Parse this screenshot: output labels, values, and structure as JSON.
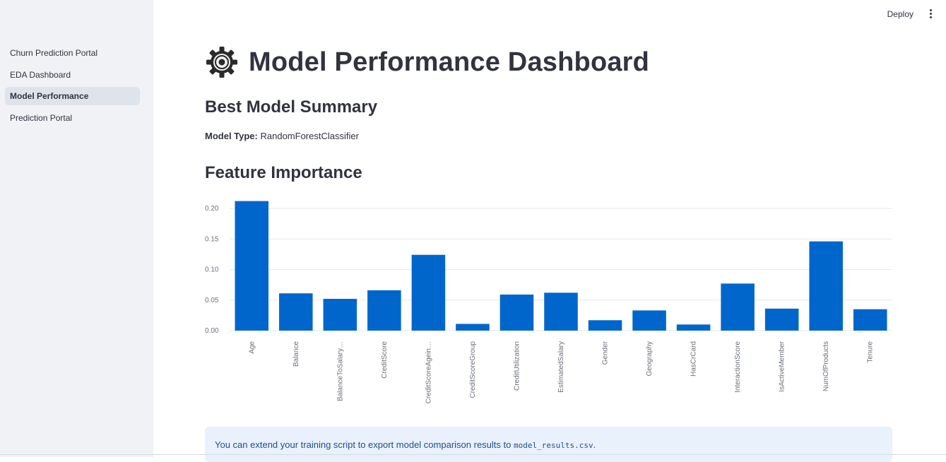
{
  "sidebar": {
    "items": [
      {
        "label": "Churn Prediction Portal",
        "active": false
      },
      {
        "label": "EDA Dashboard",
        "active": false
      },
      {
        "label": "Model Performance",
        "active": true
      },
      {
        "label": "Prediction Portal",
        "active": false
      }
    ]
  },
  "header": {
    "deploy_label": "Deploy",
    "menu_icon": "vertical-dots-icon"
  },
  "main": {
    "title_icon": "gear-icon",
    "title": "Model Performance Dashboard",
    "summary_heading": "Best Model Summary",
    "model_type_label": "Model Type:",
    "model_type_value": "RandomForestClassifier",
    "feature_heading": "Feature Importance",
    "info_text": "You can extend your training script to export model comparison results to",
    "info_code": "model_results.csv",
    "info_suffix": "."
  },
  "chart_data": {
    "type": "bar",
    "categories": [
      "Age",
      "Balance",
      "BalanceToSalary…",
      "CreditScore",
      "CreditScoreAgein…",
      "CreditScoreGroup",
      "CreditUtilization",
      "EstimatedSalary",
      "Gender",
      "Geography",
      "HasCrCard",
      "InteractionScore",
      "IsActiveMember",
      "NumOfProducts",
      "Tenure"
    ],
    "values": [
      0.212,
      0.061,
      0.052,
      0.066,
      0.124,
      0.011,
      0.059,
      0.062,
      0.017,
      0.033,
      0.01,
      0.077,
      0.036,
      0.146,
      0.035
    ],
    "yticks": [
      "0.00",
      "0.05",
      "0.10",
      "0.15",
      "0.20"
    ],
    "ylim": [
      0,
      0.22
    ],
    "grid": true,
    "bar_color": "#0066cc"
  }
}
